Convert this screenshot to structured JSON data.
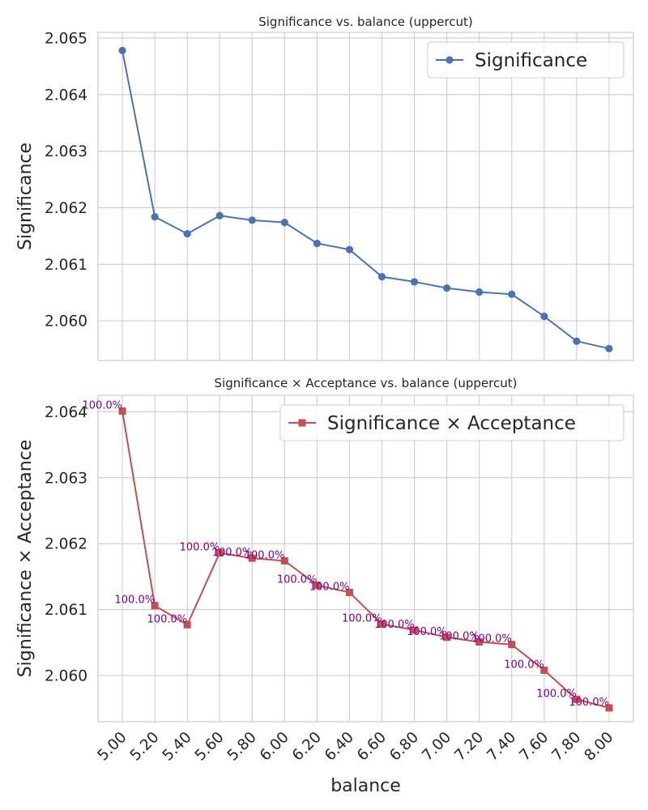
{
  "chart_data": [
    {
      "type": "line",
      "title": "Significance vs. balance (uppercut)",
      "xlabel": "",
      "ylabel": "Significance",
      "x": [
        5.0,
        5.2,
        5.4,
        5.6,
        5.8,
        6.0,
        6.2,
        6.4,
        6.6,
        6.8,
        7.0,
        7.2,
        7.4,
        7.6,
        7.8,
        8.0
      ],
      "ylim": [
        2.0593,
        2.0651
      ],
      "yticks": [
        "2.060",
        "2.061",
        "2.062",
        "2.063",
        "2.064",
        "2.065"
      ],
      "grid": true,
      "legend_position": "top-right",
      "series": [
        {
          "name": "Significance",
          "color": "#4c72b0",
          "marker": "circle",
          "values": [
            2.06478,
            2.06184,
            2.06154,
            2.06186,
            2.06178,
            2.06174,
            2.06137,
            2.06126,
            2.06078,
            2.06069,
            2.06058,
            2.06051,
            2.06047,
            2.06008,
            2.05964,
            2.05951
          ]
        }
      ]
    },
    {
      "type": "line",
      "title": "Significance × Acceptance vs. balance (uppercut)",
      "xlabel": "balance",
      "ylabel": "Significance × Acceptance",
      "x": [
        5.0,
        5.2,
        5.4,
        5.6,
        5.8,
        6.0,
        6.2,
        6.4,
        6.6,
        6.8,
        7.0,
        7.2,
        7.4,
        7.6,
        7.8,
        8.0
      ],
      "xticks": [
        "5.00",
        "5.20",
        "5.40",
        "5.60",
        "5.80",
        "6.00",
        "6.20",
        "6.40",
        "6.60",
        "6.80",
        "7.00",
        "7.20",
        "7.40",
        "7.60",
        "7.80",
        "8.00"
      ],
      "ylim": [
        2.0593,
        2.06425
      ],
      "yticks": [
        "2.060",
        "2.061",
        "2.062",
        "2.063",
        "2.064"
      ],
      "grid": true,
      "legend_position": "top-right",
      "series": [
        {
          "name": "Significance × Acceptance",
          "color": "#c44e52",
          "marker": "square",
          "values": [
            2.06401,
            2.06106,
            2.06077,
            2.06186,
            2.06178,
            2.06174,
            2.06137,
            2.06126,
            2.06078,
            2.06069,
            2.06058,
            2.06051,
            2.06047,
            2.06008,
            2.05964,
            2.05951
          ],
          "point_labels": [
            "100.0%",
            "100.0%",
            "100.0%",
            "100.0%",
            "100.0%",
            "100.0%",
            "100.0%",
            "100.0%",
            "100.0%",
            "100.0%",
            "100.0%",
            "100.0%",
            "100.0%",
            "100.0%",
            "100.0%",
            "100.0%"
          ],
          "point_label_color": "#800080"
        }
      ]
    }
  ]
}
